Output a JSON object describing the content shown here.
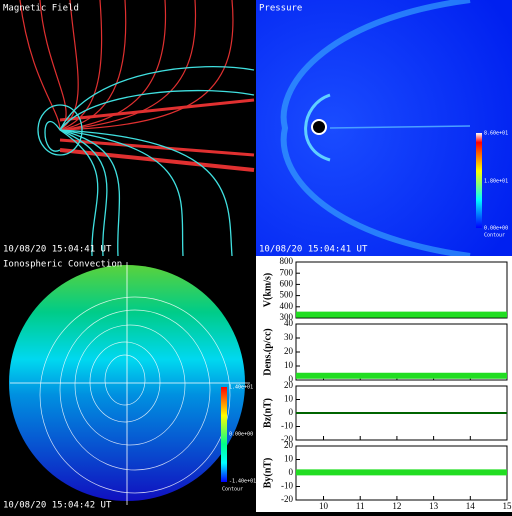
{
  "panels": {
    "magnetic_field": {
      "title": "Magnetic Field",
      "timestamp": "10/08/20 15:04:41 UT"
    },
    "pressure": {
      "title": "Pressure",
      "timestamp": "10/08/20 15:04:41 UT",
      "colorbar": [
        "8.60e+01",
        "1.80e+01",
        "0.00e+00",
        "Contour"
      ]
    },
    "ionosphere": {
      "title": "Ionospheric Convection",
      "timestamp": "10/08/20 15:04:42 UT",
      "colorbar": [
        "1.40e+01",
        "0.00e+00",
        "-1.40e+01",
        "Contour"
      ]
    }
  },
  "chart_data": [
    {
      "type": "line",
      "ylabel": "V(km/s)",
      "x": [
        9.25,
        15
      ],
      "series": [
        {
          "color": "#22dd22",
          "values": [
            330,
            330
          ]
        }
      ],
      "xlim": [
        9.25,
        15
      ],
      "ylim": [
        300,
        800
      ],
      "yticks": [
        300,
        400,
        500,
        600,
        700,
        800
      ]
    },
    {
      "type": "line",
      "ylabel": "Dens.(p/cc)",
      "x": [
        9.25,
        15
      ],
      "series": [
        {
          "color": "#22dd22",
          "values": [
            3,
            3
          ]
        }
      ],
      "xlim": [
        9.25,
        15
      ],
      "ylim": [
        0,
        40
      ],
      "yticks": [
        0,
        10,
        20,
        30,
        40
      ]
    },
    {
      "type": "line",
      "ylabel": "Bz(nT)",
      "x": [
        9.25,
        15
      ],
      "series": [
        {
          "color": "#006400",
          "values": [
            0,
            0
          ]
        }
      ],
      "xlim": [
        9.25,
        15
      ],
      "ylim": [
        -20,
        20
      ],
      "yticks": [
        -20,
        -10,
        0,
        10,
        20
      ]
    },
    {
      "type": "line",
      "ylabel": "By(nT)",
      "x": [
        9.25,
        15
      ],
      "series": [
        {
          "color": "#22dd22",
          "values": [
            0.5,
            0.5
          ]
        }
      ],
      "xlim": [
        9.25,
        15
      ],
      "ylim": [
        -20,
        20
      ],
      "yticks": [
        -20,
        -10,
        0,
        10,
        20
      ],
      "xticks": [
        10,
        11,
        12,
        13,
        14,
        15
      ]
    }
  ]
}
